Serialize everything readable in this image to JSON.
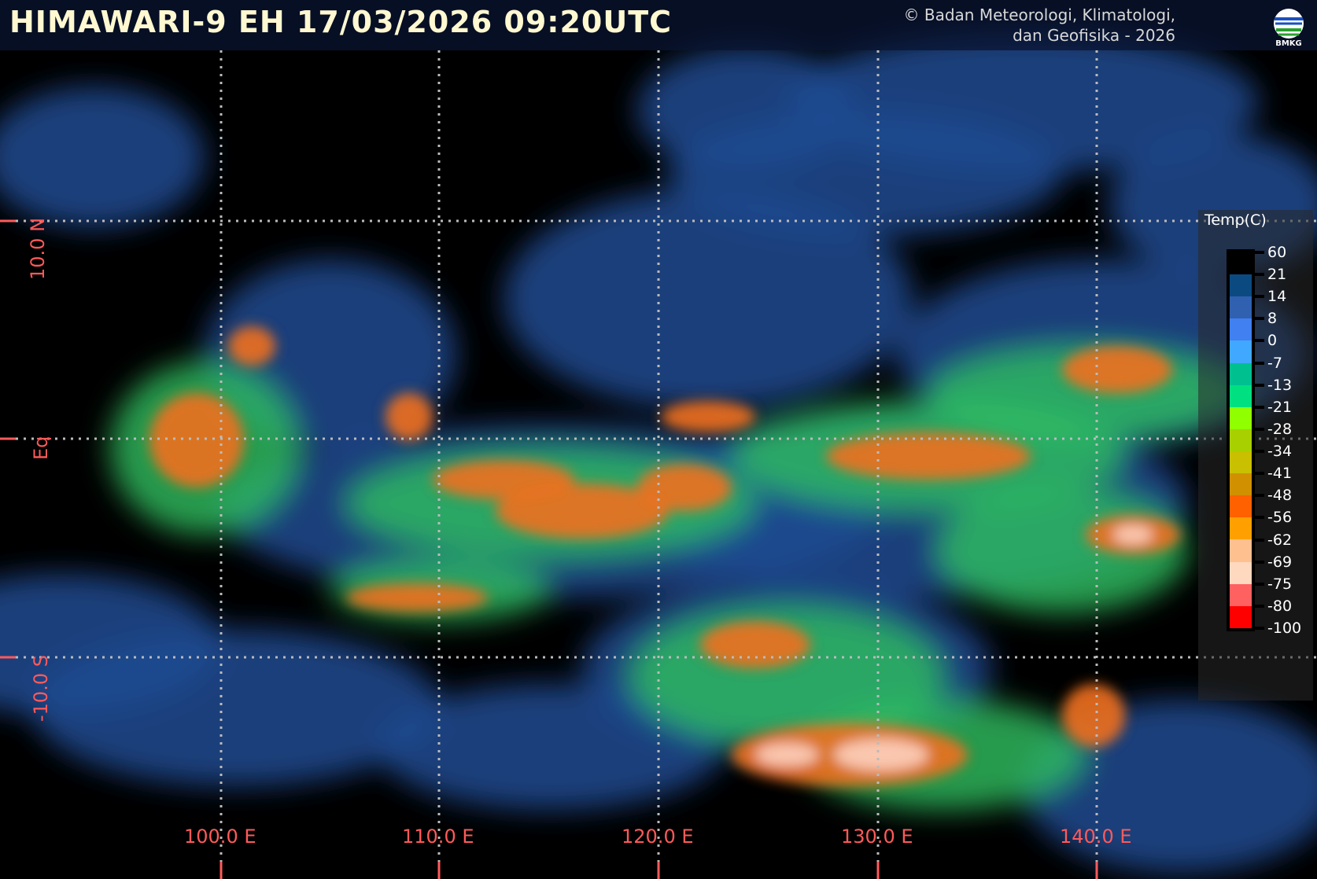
{
  "header": {
    "title": "HIMAWARI-9 EH  17/03/2026  09:20UTC",
    "copyright_line1": "© Badan Meteorologi, Klimatologi,",
    "copyright_line2": "dan Geofisika -  2026",
    "logo_text": "BMKG"
  },
  "grid": {
    "longitudes": [
      "100.0 E",
      "110.0 E",
      "120.0 E",
      "130.0 E",
      "140.0 E"
    ],
    "latitudes": [
      "10.0 N",
      "Eq",
      "-10.0 S"
    ],
    "label_color": "#ff5a5a"
  },
  "legend": {
    "title": "Temp(C)",
    "ticks": [
      "60",
      "21",
      "14",
      "8",
      "0",
      "-7",
      "-13",
      "-21",
      "-28",
      "-34",
      "-41",
      "-48",
      "-56",
      "-62",
      "-69",
      "-75",
      "-80",
      "-100"
    ],
    "colors": [
      "#000000",
      "#0b4a80",
      "#3060b0",
      "#4080f0",
      "#40a8ff",
      "#00c090",
      "#00e080",
      "#90ff00",
      "#a8d000",
      "#c8c000",
      "#d09000",
      "#ff6000",
      "#ffa000",
      "#ffc090",
      "#ffd8c0",
      "#ff6060",
      "#ff0000"
    ]
  }
}
